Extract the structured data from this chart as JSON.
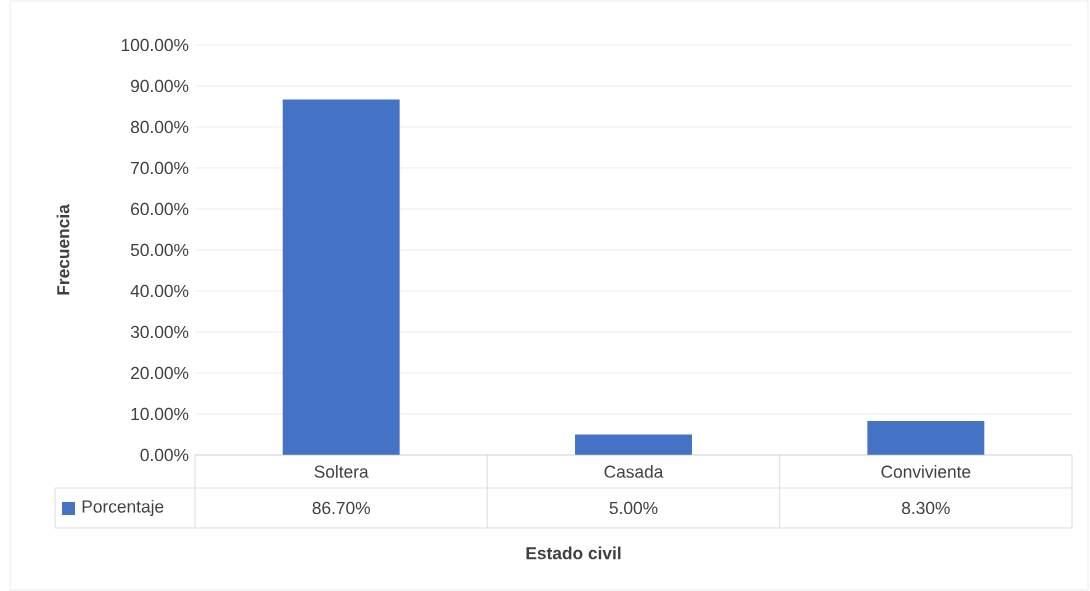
{
  "chart_data": {
    "type": "bar",
    "xlabel": "Estado civil",
    "ylabel": "Frecuencia",
    "categories": [
      "Soltera",
      "Casada",
      "Conviviente"
    ],
    "series": [
      {
        "name": "Porcentaje",
        "color": "#4472c4",
        "values": [
          86.7,
          5.0,
          8.3
        ]
      }
    ],
    "value_labels": [
      "86.70%",
      "5.00%",
      "8.30%"
    ],
    "ylim": [
      0,
      100
    ],
    "yticks": [
      {
        "value": 0,
        "label": "0.00%"
      },
      {
        "value": 10,
        "label": "10.00%"
      },
      {
        "value": 20,
        "label": "20.00%"
      },
      {
        "value": 30,
        "label": "30.00%"
      },
      {
        "value": 40,
        "label": "40.00%"
      },
      {
        "value": 50,
        "label": "50.00%"
      },
      {
        "value": 60,
        "label": "60.00%"
      },
      {
        "value": 70,
        "label": "70.00%"
      },
      {
        "value": 80,
        "label": "80.00%"
      },
      {
        "value": 90,
        "label": "90.00%"
      },
      {
        "value": 100,
        "label": "100.00%"
      }
    ],
    "grid": "y",
    "legend": "bottom"
  }
}
